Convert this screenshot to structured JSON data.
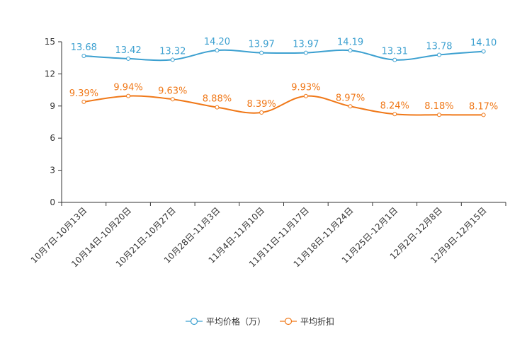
{
  "chart_data": {
    "type": "line",
    "categories": [
      "10月7日-10月13日",
      "10月14日-10月20日",
      "10月21日-10月27日",
      "10月28日-11月3日",
      "11月4日-11月10日",
      "11月11日-11月17日",
      "11月18日-11月24日",
      "11月25日-12月1日",
      "12月2日-12月8日",
      "12月9日-12月15日"
    ],
    "ylim": [
      0,
      15
    ],
    "yticks": [
      0,
      3,
      6,
      9,
      12,
      15
    ],
    "series": [
      {
        "name": "平均价格（万）",
        "color": "#3ca0d0",
        "values": [
          13.68,
          13.42,
          13.32,
          14.2,
          13.97,
          13.97,
          14.19,
          13.31,
          13.78,
          14.1
        ],
        "labels": [
          "13.68",
          "13.42",
          "13.32",
          "14.20",
          "13.97",
          "13.97",
          "14.19",
          "13.31",
          "13.78",
          "14.10"
        ]
      },
      {
        "name": "平均折扣",
        "color": "#f07818",
        "values": [
          9.39,
          9.94,
          9.63,
          8.88,
          8.39,
          9.93,
          8.97,
          8.24,
          8.18,
          8.17
        ],
        "labels": [
          "9.39%",
          "9.94%",
          "9.63%",
          "8.88%",
          "8.39%",
          "9.93%",
          "8.97%",
          "8.24%",
          "8.18%",
          "8.17%"
        ]
      }
    ],
    "legend": {
      "position": "bottom-center"
    }
  }
}
